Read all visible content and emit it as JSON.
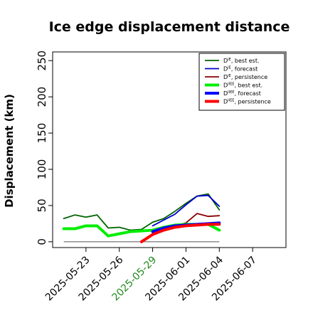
{
  "chart_data": {
    "type": "line",
    "title": "Ice edge displacement distance",
    "xlabel": "",
    "ylabel": "Displacement (km)",
    "ylim": [
      -8,
      262
    ],
    "xlim": [
      "2025-05-20",
      "2025-06-10"
    ],
    "yticks": [
      0,
      50,
      100,
      150,
      200,
      250
    ],
    "xticks": [
      "2025-05-23",
      "2025-05-26",
      "2025-05-29",
      "2025-06-01",
      "2025-06-04",
      "2025-06-07"
    ],
    "highlight_tick": "2025-05-29",
    "highlight_color": "#228B22",
    "legend_position": "top-right",
    "series": [
      {
        "name": "D^IE, best est.",
        "label_main": "D",
        "label_sup": "IE",
        "label_rest": ", best est.",
        "color": "#006400",
        "width": 1.8,
        "points": [
          [
            "2025-05-21",
            32
          ],
          [
            "2025-05-22",
            37
          ],
          [
            "2025-05-23",
            34
          ],
          [
            "2025-05-24",
            37
          ],
          [
            "2025-05-25",
            19
          ],
          [
            "2025-05-26",
            20
          ],
          [
            "2025-05-27",
            16
          ],
          [
            "2025-05-28",
            17
          ],
          [
            "2025-05-29",
            27
          ],
          [
            "2025-05-30",
            32
          ],
          [
            "2025-05-31",
            42
          ],
          [
            "2025-06-01",
            53
          ],
          [
            "2025-06-02",
            63
          ],
          [
            "2025-06-03",
            66
          ],
          [
            "2025-06-04",
            44
          ]
        ]
      },
      {
        "name": "D^IE, forecast",
        "label_main": "D",
        "label_sup": "IE",
        "label_rest": ", forecast",
        "color": "#0000CD",
        "width": 1.8,
        "points": [
          [
            "2025-05-29",
            22
          ],
          [
            "2025-05-30",
            30
          ],
          [
            "2025-05-31",
            38
          ],
          [
            "2025-06-01",
            51
          ],
          [
            "2025-06-02",
            63
          ],
          [
            "2025-06-03",
            64
          ],
          [
            "2025-06-04",
            49
          ]
        ]
      },
      {
        "name": "D^IE, persistence",
        "label_main": "D",
        "label_sup": "IE",
        "label_rest": ", persistence",
        "color": "#8B0000",
        "width": 1.8,
        "points": [
          [
            "2025-05-29",
            11
          ],
          [
            "2025-05-30",
            18
          ],
          [
            "2025-05-31",
            22
          ],
          [
            "2025-06-01",
            26
          ],
          [
            "2025-06-02",
            39
          ],
          [
            "2025-06-03",
            35
          ],
          [
            "2025-06-04",
            36
          ]
        ]
      },
      {
        "name": "D^IIEE, best est.",
        "label_main": "D",
        "label_sup": "IIEE",
        "label_rest": ", best est.",
        "color": "#00EE00",
        "width": 4,
        "points": [
          [
            "2025-05-21",
            18
          ],
          [
            "2025-05-22",
            18
          ],
          [
            "2025-05-23",
            22
          ],
          [
            "2025-05-24",
            22
          ],
          [
            "2025-05-25",
            8
          ],
          [
            "2025-05-26",
            11
          ],
          [
            "2025-05-27",
            14
          ],
          [
            "2025-05-28",
            15
          ],
          [
            "2025-05-29",
            16
          ],
          [
            "2025-05-30",
            20
          ],
          [
            "2025-05-31",
            23
          ],
          [
            "2025-06-01",
            24
          ],
          [
            "2025-06-02",
            24
          ],
          [
            "2025-06-03",
            24
          ],
          [
            "2025-06-04",
            16
          ]
        ]
      },
      {
        "name": "D^IIEE, forecast",
        "label_main": "D",
        "label_sup": "IIEE",
        "label_rest": ", forecast",
        "color": "#0000FF",
        "width": 4,
        "points": [
          [
            "2025-05-29",
            14
          ],
          [
            "2025-05-30",
            19
          ],
          [
            "2025-05-31",
            22
          ],
          [
            "2025-06-01",
            23
          ],
          [
            "2025-06-02",
            24
          ],
          [
            "2025-06-03",
            25
          ],
          [
            "2025-06-04",
            26
          ]
        ]
      },
      {
        "name": "D^IIEE, persistence",
        "label_main": "D",
        "label_sup": "IIEE",
        "label_rest": ", persistence",
        "color": "#FF0000",
        "width": 4,
        "points": [
          [
            "2025-05-28",
            0
          ],
          [
            "2025-05-29",
            10
          ],
          [
            "2025-05-30",
            16
          ],
          [
            "2025-05-31",
            20
          ],
          [
            "2025-06-01",
            22
          ],
          [
            "2025-06-02",
            23
          ],
          [
            "2025-06-03",
            24
          ],
          [
            "2025-06-04",
            24
          ]
        ]
      }
    ],
    "zero_line": {
      "from": "2025-05-21",
      "to": "2025-06-04",
      "value": 0,
      "color": "#555555"
    }
  }
}
